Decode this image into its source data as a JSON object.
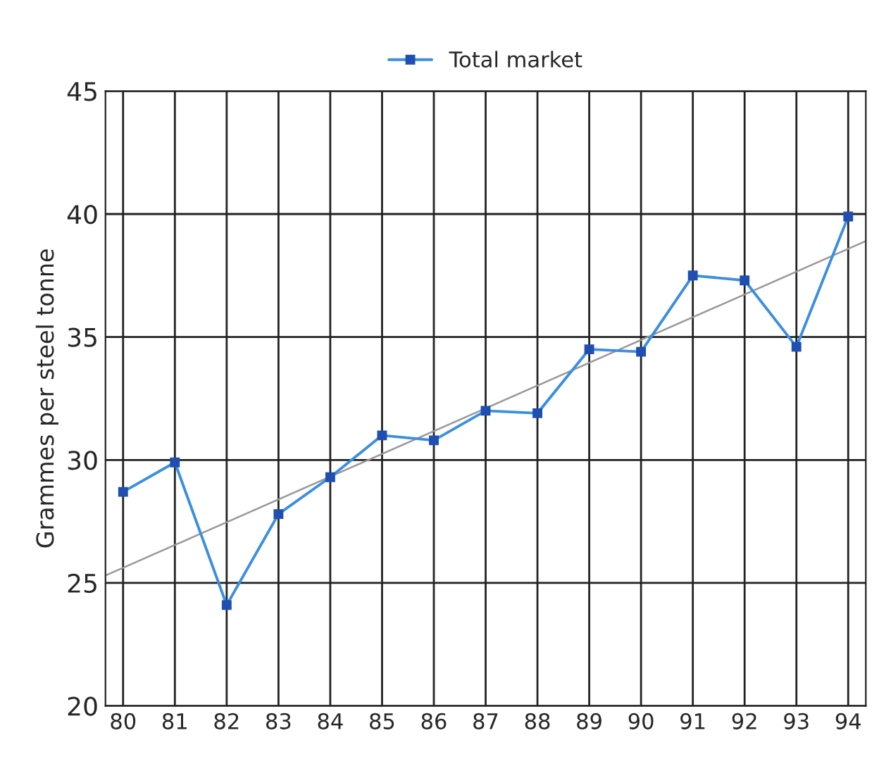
{
  "chart_data": {
    "type": "line",
    "ylabel": "Grammes per steel tonne",
    "x": [
      80,
      81,
      82,
      83,
      84,
      85,
      86,
      87,
      88,
      89,
      90,
      91,
      92,
      93,
      94
    ],
    "series": [
      {
        "name": "Total market",
        "color": "#3b8fe0",
        "values": [
          28.7,
          29.9,
          24.1,
          27.8,
          29.3,
          31.0,
          30.8,
          32.0,
          31.9,
          34.5,
          34.4,
          37.5,
          37.3,
          34.6,
          39.9
        ],
        "marker": "square"
      },
      {
        "type": "line",
        "color": "#999999",
        "x": [
          79.66,
          94.34
        ],
        "values": [
          25.3,
          38.9
        ],
        "marker": "none"
      }
    ],
    "xlim": [
      79.66,
      94.34
    ],
    "xticks": [
      80,
      81,
      82,
      83,
      84,
      85,
      86,
      87,
      88,
      89,
      90,
      91,
      92,
      93,
      94
    ],
    "ylim": [
      20,
      45
    ],
    "yticks": [
      20,
      25,
      30,
      35,
      40,
      45
    ],
    "grid": true,
    "legend": "top",
    "line_style": "solid"
  }
}
